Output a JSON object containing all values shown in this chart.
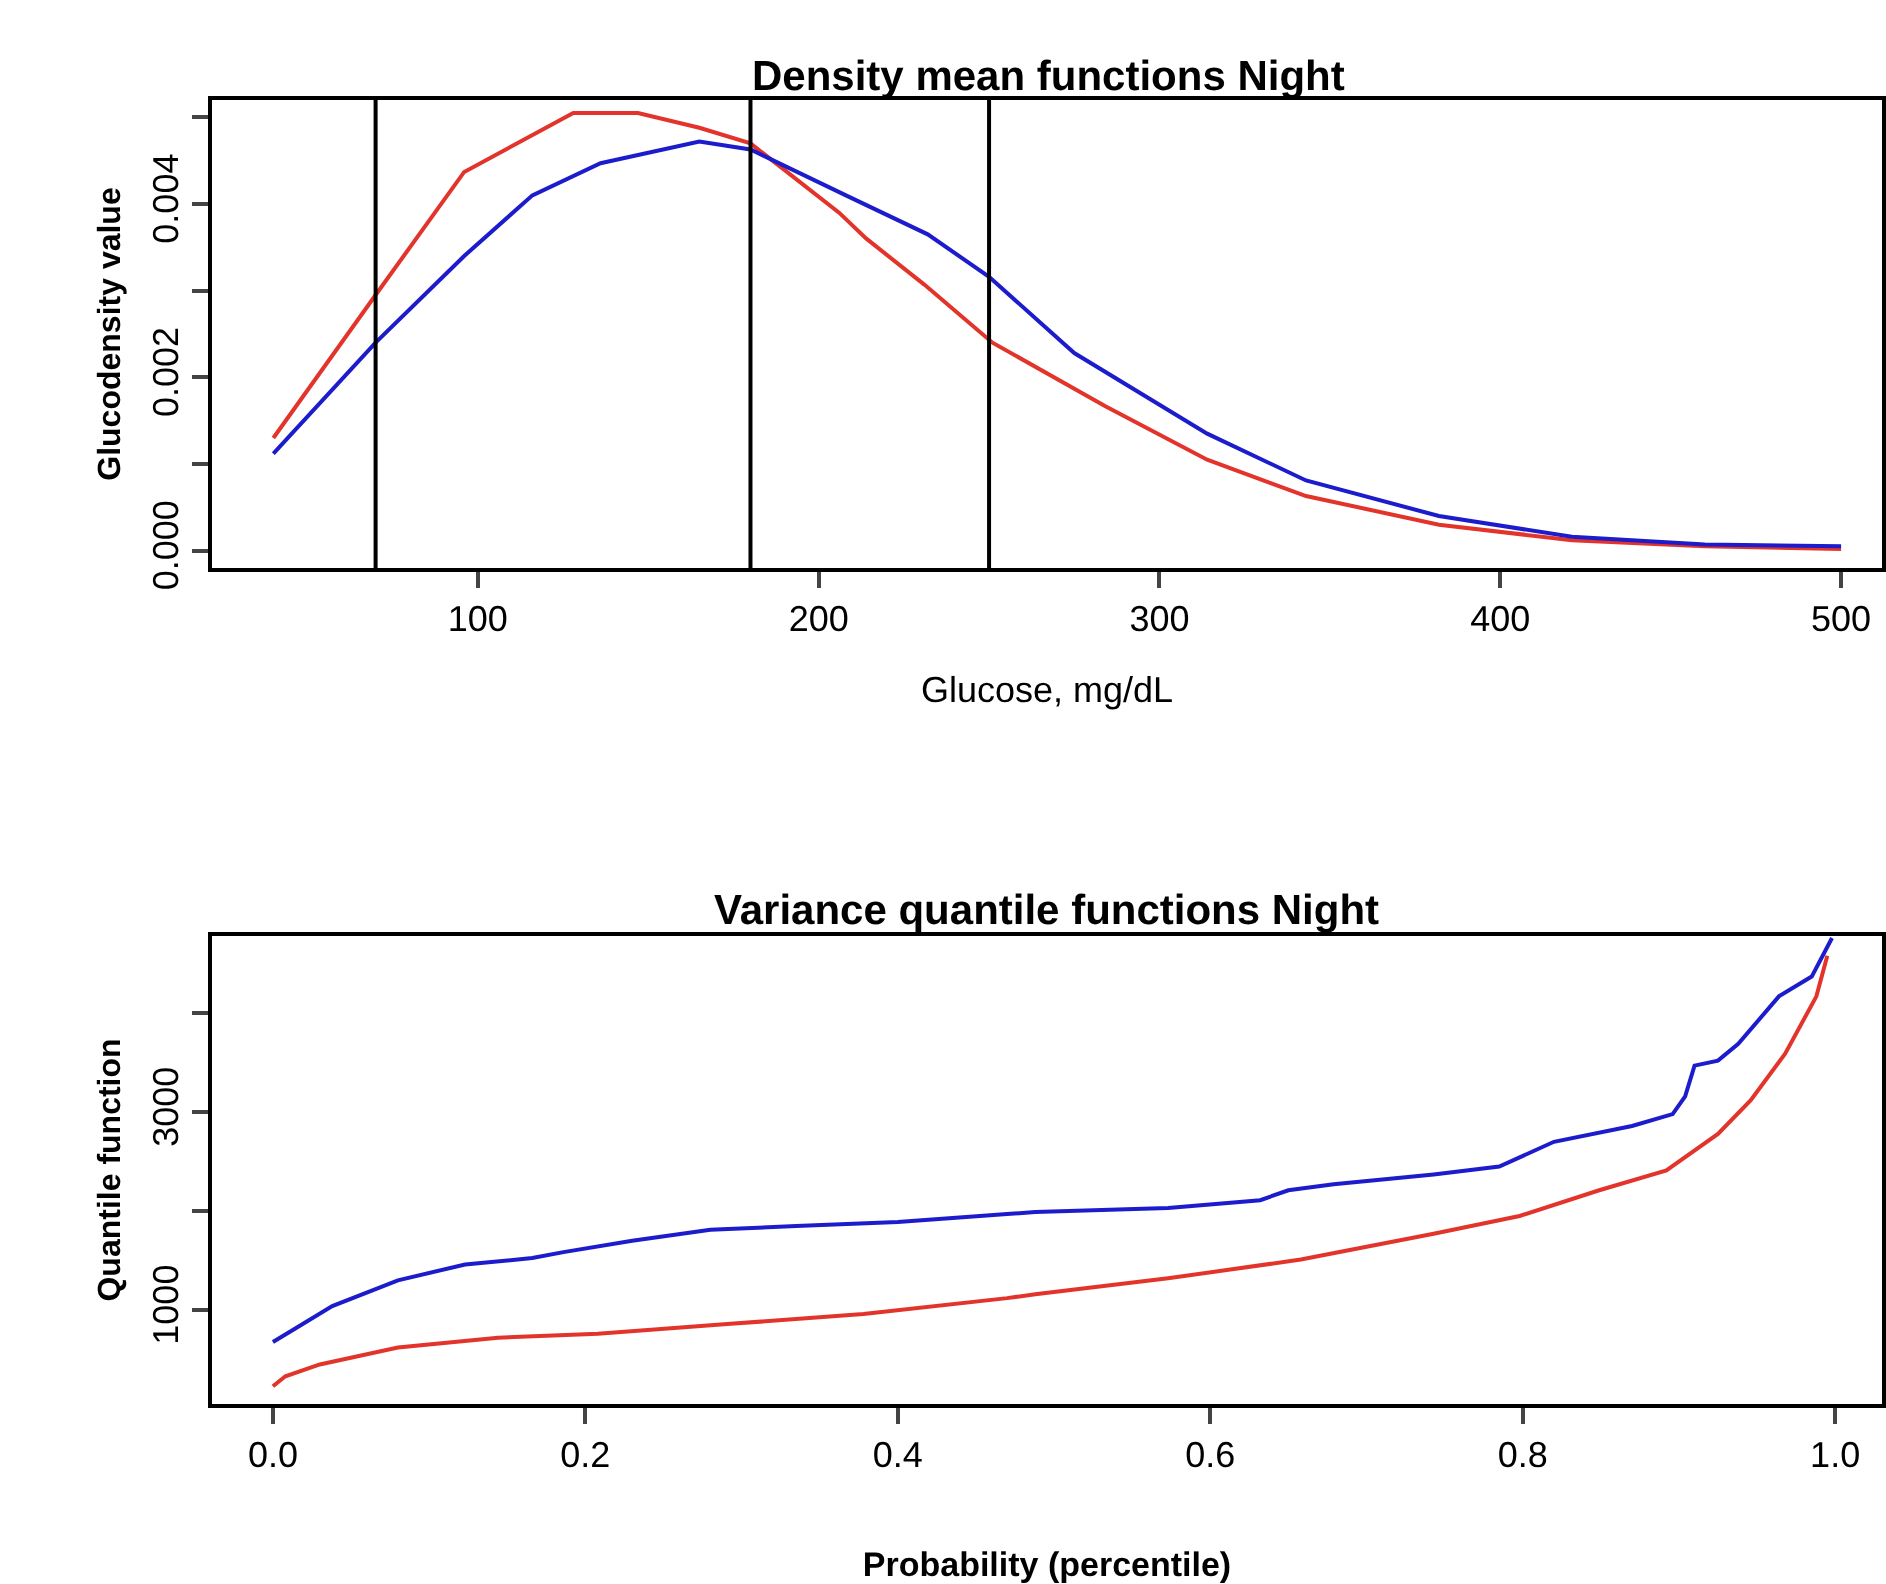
{
  "chart_data": [
    {
      "type": "line",
      "title": "Density mean functions Night",
      "xlabel": "Glucose, mg/dL",
      "ylabel": "Glucodensity value",
      "xlim": [
        22,
        512
      ],
      "xticks": [
        100,
        200,
        300,
        400,
        500
      ],
      "ylim": [
        -0.0002,
        0.0052
      ],
      "yticks": [
        {
          "value": 0,
          "label": "0.000"
        },
        {
          "value": 0.001,
          "label": null
        },
        {
          "value": 0.002,
          "label": "0.002"
        },
        {
          "value": 0.003,
          "label": null
        },
        {
          "value": 0.004,
          "label": "0.004"
        },
        {
          "value": 0.005,
          "label": null
        }
      ],
      "ref_lines": [
        {
          "axis": "x",
          "value": 70,
          "color": "#000000"
        },
        {
          "axis": "x",
          "value": 180,
          "color": "#000000"
        },
        {
          "axis": "x",
          "value": 250,
          "color": "#000000"
        }
      ],
      "series": [
        {
          "color": "#e3342b",
          "x": [
            40,
            70,
            96,
            128,
            147,
            165,
            180,
            206,
            214,
            231,
            251,
            284,
            314,
            343,
            382,
            421,
            460,
            500
          ],
          "values": [
            0.0013,
            0.00295,
            0.00437,
            0.00505,
            0.00505,
            0.00488,
            0.0047,
            0.0039,
            0.0036,
            0.00307,
            0.0024,
            0.00167,
            0.00105,
            0.00063,
            0.0003,
            0.00012,
            5e-05,
            2e-05
          ]
        },
        {
          "color": "#1c1ccc",
          "x": [
            40,
            70,
            96,
            116,
            136,
            165,
            180,
            208,
            232,
            250,
            275,
            314,
            343,
            382,
            421,
            460,
            500
          ],
          "values": [
            0.00112,
            0.0024,
            0.0034,
            0.0041,
            0.00447,
            0.00472,
            0.00463,
            0.0041,
            0.00365,
            0.00316,
            0.00228,
            0.00135,
            0.00081,
            0.0004,
            0.00016,
            7e-05,
            5e-05
          ]
        }
      ]
    },
    {
      "type": "line",
      "title": "Variance quantile functions Night",
      "xlabel": "Probability (percentile)",
      "ylabel": "Quantile function",
      "xlim": [
        -0.039,
        1.03
      ],
      "xticks": [
        {
          "value": 0,
          "label": "0.0"
        },
        {
          "value": 0.2,
          "label": "0.2"
        },
        {
          "value": 0.4,
          "label": "0.4"
        },
        {
          "value": 0.6,
          "label": "0.6"
        },
        {
          "value": 0.8,
          "label": "0.8"
        },
        {
          "value": 1,
          "label": "1.0"
        }
      ],
      "ylim": [
        50,
        4780
      ],
      "yticks": [
        1000,
        {
          "value": 2000,
          "label": null
        },
        3000,
        {
          "value": 4000,
          "label": null
        }
      ],
      "series": [
        {
          "color": "#1c1ccc",
          "x": [
            0,
            0.013,
            0.038,
            0.08,
            0.123,
            0.166,
            0.186,
            0.23,
            0.28,
            0.335,
            0.4,
            0.47,
            0.488,
            0.573,
            0.632,
            0.65,
            0.679,
            0.743,
            0.785,
            0.82,
            0.87,
            0.896,
            0.904,
            0.91,
            0.925,
            0.938,
            0.964,
            0.985,
            0.998
          ],
          "values": [
            677,
            800,
            1040,
            1300,
            1460,
            1525,
            1585,
            1700,
            1810,
            1850,
            1890,
            1970,
            1990,
            2030,
            2110,
            2210,
            2270,
            2370,
            2450,
            2700,
            2860,
            2980,
            3160,
            3470,
            3520,
            3690,
            4170,
            4370,
            4760
          ]
        },
        {
          "color": "#e3342b",
          "x": [
            0,
            0.008,
            0.03,
            0.08,
            0.144,
            0.208,
            0.293,
            0.378,
            0.47,
            0.488,
            0.573,
            0.658,
            0.743,
            0.798,
            0.849,
            0.892,
            0.925,
            0.946,
            0.968,
            0.988,
            0.995
          ],
          "values": [
            230,
            330,
            450,
            620,
            720,
            760,
            860,
            960,
            1120,
            1160,
            1320,
            1510,
            1770,
            1950,
            2210,
            2410,
            2780,
            3120,
            3590,
            4170,
            4580
          ]
        }
      ]
    }
  ]
}
